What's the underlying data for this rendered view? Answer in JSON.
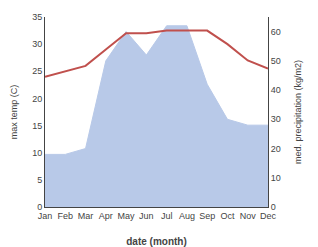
{
  "chart_data": {
    "type": "line",
    "categories": [
      "Jan",
      "Feb",
      "Mar",
      "Apr",
      "May",
      "Jun",
      "Jul",
      "Aug",
      "Sep",
      "Oct",
      "Nov",
      "Dec"
    ],
    "xlabel": "date (month)",
    "ylabel": "max temp (C)",
    "y2label": "med. precipitation (kg/m2)",
    "series": [
      {
        "type": "area",
        "axis": "y2",
        "color": "#b8c9e8",
        "values": [
          18,
          18,
          20,
          50,
          60,
          52,
          62,
          62,
          42,
          30,
          28,
          28
        ]
      },
      {
        "type": "line",
        "color": "#c0504d",
        "values": [
          24,
          25,
          26,
          29,
          32,
          32,
          32.5,
          32.5,
          32.5,
          30,
          27,
          25.5
        ]
      }
    ],
    "ylim": [
      0,
      35
    ],
    "yticks": [
      0,
      5,
      10,
      15,
      20,
      25,
      30,
      35
    ],
    "y2lim": [
      0,
      65
    ],
    "y2ticks": [
      0,
      10,
      20,
      30,
      40,
      50,
      60
    ],
    "grid": false
  }
}
